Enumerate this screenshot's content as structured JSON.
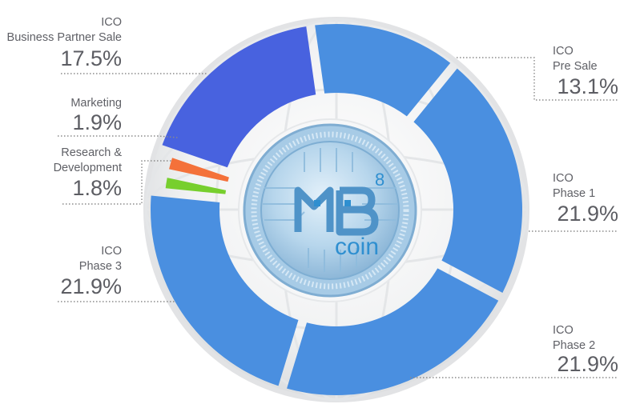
{
  "chart_data": {
    "type": "pie",
    "variant": "donut",
    "title": "",
    "categories": [
      "ICO Pre Sale",
      "ICO Phase 1",
      "ICO Phase 2",
      "ICO Phase 3",
      "Research & Development",
      "Marketing",
      "ICO Business Partner Sale"
    ],
    "values": [
      13.1,
      21.9,
      21.9,
      21.9,
      1.8,
      1.9,
      17.5
    ],
    "unit": "%",
    "colors": [
      "#4a8fe0",
      "#4a8fe0",
      "#4a8fe0",
      "#4a8fe0",
      "#77cf2e",
      "#f4713a",
      "#4862df"
    ],
    "labels": [
      {
        "lines": [
          "ICO",
          "Pre Sale"
        ],
        "value_text": "13.1%"
      },
      {
        "lines": [
          "ICO",
          "Phase 1"
        ],
        "value_text": "21.9%"
      },
      {
        "lines": [
          "ICO",
          "Phase 2"
        ],
        "value_text": "21.9%"
      },
      {
        "lines": [
          "ICO",
          "Phase 3"
        ],
        "value_text": "21.9%"
      },
      {
        "lines": [
          "Research &",
          "Development"
        ],
        "value_text": "1.8%"
      },
      {
        "lines": [
          "Marketing"
        ],
        "value_text": "1.9%"
      },
      {
        "lines": [
          "ICO",
          "Business Partner Sale"
        ],
        "value_text": "17.5%"
      }
    ],
    "legend": "none"
  },
  "logo": {
    "text_main": "MB",
    "text_superscript": "8",
    "text_sub": "coin",
    "colors": {
      "face": "#bcd9ec",
      "rim": "#8fb9d9",
      "emboss": "#4a8cc0",
      "letters": "#2f8fd0"
    }
  }
}
